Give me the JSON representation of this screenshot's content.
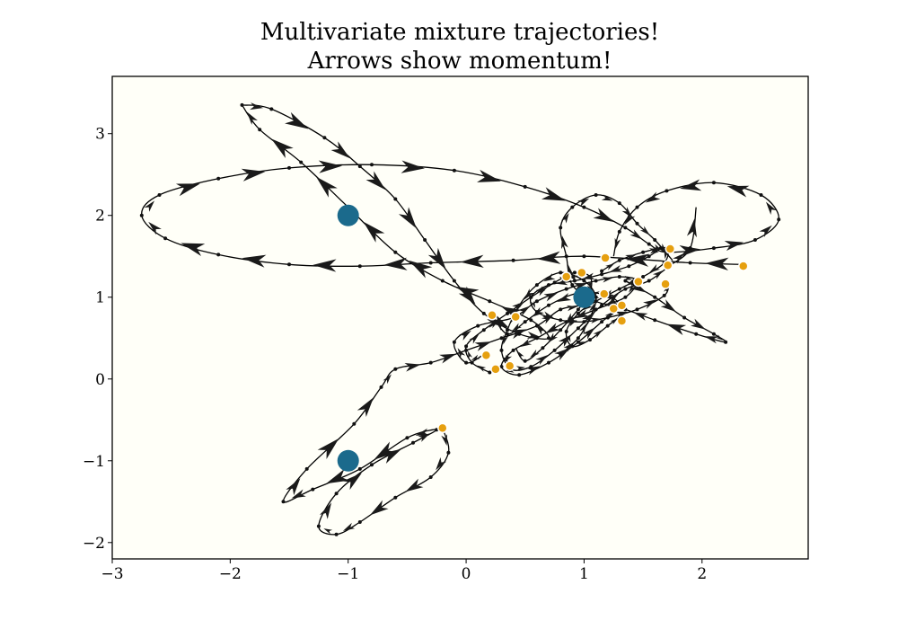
{
  "chart_data": {
    "type": "line",
    "title": [
      "Multivariate mixture trajectories!",
      "Arrows show momentum!"
    ],
    "xlabel": "",
    "ylabel": "",
    "xlim": [
      -3.0,
      2.9
    ],
    "ylim": [
      -2.2,
      3.7
    ],
    "xticks": [
      {
        "value": -3,
        "label": "−3"
      },
      {
        "value": -2,
        "label": "−2"
      },
      {
        "value": -1,
        "label": "−1"
      },
      {
        "value": 0,
        "label": "0"
      },
      {
        "value": 1,
        "label": "1"
      },
      {
        "value": 2,
        "label": "2"
      }
    ],
    "yticks": [
      {
        "value": -2,
        "label": "−2"
      },
      {
        "value": -1,
        "label": "−1"
      },
      {
        "value": 0,
        "label": "0"
      },
      {
        "value": 1,
        "label": "1"
      },
      {
        "value": 2,
        "label": "2"
      },
      {
        "value": 3,
        "label": "3"
      }
    ],
    "grid": false,
    "legend": "none",
    "colors": {
      "background": "#fffff8",
      "line": "#000000",
      "arrow": "#1a1a1a",
      "center": "#1b6a8c",
      "endpoint": "#e6a00f"
    },
    "mixture_centers": [
      {
        "x": -1.0,
        "y": 2.0
      },
      {
        "x": 1.0,
        "y": 1.0
      },
      {
        "x": -1.0,
        "y": -1.0
      }
    ],
    "trajectories": [
      {
        "points": [
          [
            -0.2,
            -0.6
          ],
          [
            -0.15,
            -0.9
          ],
          [
            -0.3,
            -1.2
          ],
          [
            -0.6,
            -1.45
          ],
          [
            -0.9,
            -1.75
          ],
          [
            -1.1,
            -1.9
          ],
          [
            -1.25,
            -1.8
          ],
          [
            -1.1,
            -1.4
          ],
          [
            -0.8,
            -1.05
          ],
          [
            -0.45,
            -0.78
          ],
          [
            -0.25,
            -0.62
          ],
          [
            -0.5,
            -0.72
          ],
          [
            -0.9,
            -1.1
          ],
          [
            -1.3,
            -1.35
          ],
          [
            -1.55,
            -1.5
          ],
          [
            -1.35,
            -1.1
          ],
          [
            -0.95,
            -0.55
          ],
          [
            -0.72,
            -0.1
          ],
          [
            -0.6,
            0.12
          ],
          [
            -0.3,
            0.2
          ],
          [
            0.0,
            0.35
          ],
          [
            0.3,
            0.5
          ],
          [
            0.6,
            0.65
          ],
          [
            0.8,
            0.85
          ],
          [
            1.0,
            0.9
          ]
        ],
        "arrows_every": 1
      },
      {
        "points": [
          [
            -1.9,
            3.35
          ],
          [
            -1.65,
            3.3
          ],
          [
            -1.2,
            2.95
          ],
          [
            -0.9,
            2.6
          ],
          [
            -0.6,
            2.2
          ],
          [
            -0.35,
            1.7
          ],
          [
            -0.1,
            1.2
          ],
          [
            0.15,
            0.8
          ],
          [
            0.45,
            0.55
          ],
          [
            0.7,
            0.5
          ],
          [
            0.55,
            0.72
          ],
          [
            0.2,
            0.95
          ],
          [
            -0.2,
            1.2
          ],
          [
            -0.6,
            1.55
          ],
          [
            -1.0,
            2.1
          ],
          [
            -1.4,
            2.65
          ],
          [
            -1.75,
            3.05
          ],
          [
            -1.9,
            3.35
          ]
        ],
        "arrows_every": 1
      },
      {
        "points": [
          [
            2.35,
            1.4
          ],
          [
            1.9,
            1.42
          ],
          [
            1.0,
            1.5
          ],
          [
            0.4,
            1.45
          ],
          [
            -0.3,
            1.42
          ],
          [
            -0.9,
            1.38
          ],
          [
            -1.5,
            1.4
          ],
          [
            -2.1,
            1.52
          ],
          [
            -2.55,
            1.72
          ],
          [
            -2.75,
            2.0
          ],
          [
            -2.6,
            2.25
          ],
          [
            -2.1,
            2.45
          ],
          [
            -1.5,
            2.58
          ],
          [
            -0.8,
            2.62
          ],
          [
            -0.1,
            2.55
          ],
          [
            0.5,
            2.35
          ],
          [
            1.0,
            2.1
          ],
          [
            1.35,
            1.85
          ],
          [
            1.55,
            1.65
          ],
          [
            1.7,
            1.55
          ],
          [
            2.1,
            1.6
          ],
          [
            2.45,
            1.7
          ],
          [
            2.65,
            1.95
          ],
          [
            2.5,
            2.25
          ],
          [
            2.1,
            2.4
          ],
          [
            1.7,
            2.3
          ],
          [
            1.45,
            2.1
          ],
          [
            1.3,
            1.8
          ],
          [
            1.25,
            1.5
          ]
        ],
        "arrows_every": 1
      },
      {
        "points": [
          [
            1.35,
            1.2
          ],
          [
            1.6,
            1.0
          ],
          [
            1.85,
            0.75
          ],
          [
            2.1,
            0.55
          ],
          [
            2.2,
            0.45
          ],
          [
            1.95,
            0.55
          ],
          [
            1.6,
            0.72
          ],
          [
            1.35,
            0.85
          ],
          [
            1.1,
            0.95
          ],
          [
            0.9,
            1.15
          ],
          [
            0.85,
            1.5
          ],
          [
            0.8,
            1.85
          ],
          [
            0.9,
            2.1
          ],
          [
            1.1,
            2.25
          ],
          [
            1.3,
            2.15
          ],
          [
            1.45,
            1.9
          ],
          [
            1.6,
            1.7
          ],
          [
            1.75,
            1.45
          ]
        ],
        "arrows_every": 1
      },
      {
        "points": [
          [
            0.15,
            0.3
          ],
          [
            0.0,
            0.2
          ],
          [
            -0.1,
            0.45
          ],
          [
            0.1,
            0.65
          ],
          [
            0.4,
            0.75
          ],
          [
            0.6,
            0.95
          ],
          [
            0.85,
            1.1
          ],
          [
            1.1,
            1.2
          ],
          [
            1.3,
            1.25
          ],
          [
            1.45,
            1.2
          ],
          [
            1.35,
            1.0
          ],
          [
            1.1,
            0.85
          ],
          [
            0.85,
            0.7
          ],
          [
            0.6,
            0.5
          ],
          [
            0.4,
            0.35
          ],
          [
            0.3,
            0.15
          ],
          [
            0.45,
            0.05
          ],
          [
            0.7,
            0.2
          ],
          [
            0.95,
            0.45
          ],
          [
            1.15,
            0.7
          ],
          [
            1.3,
            0.88
          ],
          [
            1.2,
            1.02
          ],
          [
            0.95,
            1.05
          ],
          [
            0.7,
            0.9
          ],
          [
            0.5,
            0.7
          ],
          [
            0.35,
            0.55
          ],
          [
            0.22,
            0.78
          ]
        ],
        "arrows_every": 1
      },
      {
        "points": [
          [
            0.8,
            0.3
          ],
          [
            0.95,
            0.5
          ],
          [
            1.05,
            0.75
          ],
          [
            1.1,
            1.0
          ],
          [
            1.0,
            1.2
          ],
          [
            0.8,
            1.3
          ],
          [
            0.6,
            1.15
          ],
          [
            0.45,
            0.9
          ],
          [
            0.35,
            0.6
          ],
          [
            0.3,
            0.35
          ],
          [
            0.38,
            0.12
          ],
          [
            0.55,
            0.15
          ],
          [
            0.75,
            0.35
          ],
          [
            0.95,
            0.62
          ],
          [
            1.15,
            0.9
          ],
          [
            1.35,
            1.1
          ],
          [
            1.55,
            1.2
          ],
          [
            1.72,
            1.38
          ],
          [
            1.9,
            1.6
          ],
          [
            1.95,
            2.1
          ]
        ],
        "arrows_every": 1
      },
      {
        "points": [
          [
            0.2,
            0.08
          ],
          [
            0.05,
            0.2
          ],
          [
            0.0,
            0.4
          ],
          [
            0.15,
            0.6
          ],
          [
            0.35,
            0.8
          ],
          [
            0.55,
            1.0
          ],
          [
            0.75,
            1.18
          ],
          [
            0.92,
            1.3
          ],
          [
            1.05,
            1.25
          ],
          [
            1.05,
            1.05
          ],
          [
            0.95,
            0.85
          ],
          [
            0.8,
            0.6
          ],
          [
            0.65,
            0.38
          ],
          [
            0.5,
            0.22
          ],
          [
            0.42,
            0.38
          ]
        ],
        "arrows_every": 1
      },
      {
        "points": [
          [
            1.15,
            1.32
          ],
          [
            1.3,
            1.45
          ],
          [
            1.5,
            1.55
          ],
          [
            1.7,
            1.6
          ],
          [
            1.68,
            1.42
          ],
          [
            1.5,
            1.25
          ],
          [
            1.3,
            1.1
          ],
          [
            1.1,
            0.95
          ],
          [
            0.95,
            0.8
          ],
          [
            0.85,
            0.58
          ],
          [
            0.9,
            0.4
          ],
          [
            1.05,
            0.48
          ],
          [
            1.2,
            0.65
          ],
          [
            1.32,
            0.78
          ]
        ],
        "arrows_every": 1
      },
      {
        "points": [
          [
            1.65,
            1.6
          ],
          [
            1.55,
            1.5
          ],
          [
            1.38,
            1.38
          ],
          [
            1.15,
            1.28
          ],
          [
            0.92,
            1.2
          ],
          [
            0.7,
            1.15
          ],
          [
            0.55,
            1.0
          ],
          [
            0.6,
            0.82
          ],
          [
            0.8,
            0.72
          ],
          [
            1.0,
            0.7
          ],
          [
            1.2,
            0.75
          ],
          [
            1.45,
            0.85
          ],
          [
            1.68,
            1.02
          ],
          [
            1.72,
            1.18
          ]
        ],
        "arrows_every": 1
      }
    ],
    "endpoints": [
      {
        "x": -0.2,
        "y": -0.6
      },
      {
        "x": 0.17,
        "y": 0.29
      },
      {
        "x": 0.25,
        "y": 0.12
      },
      {
        "x": 0.37,
        "y": 0.16
      },
      {
        "x": 0.22,
        "y": 0.78
      },
      {
        "x": 0.42,
        "y": 0.76
      },
      {
        "x": 0.85,
        "y": 1.25
      },
      {
        "x": 0.98,
        "y": 1.3
      },
      {
        "x": 1.18,
        "y": 1.48
      },
      {
        "x": 1.17,
        "y": 1.04
      },
      {
        "x": 1.25,
        "y": 0.86
      },
      {
        "x": 1.32,
        "y": 0.9
      },
      {
        "x": 1.32,
        "y": 0.71
      },
      {
        "x": 1.46,
        "y": 1.19
      },
      {
        "x": 1.69,
        "y": 1.16
      },
      {
        "x": 1.71,
        "y": 1.39
      },
      {
        "x": 1.73,
        "y": 1.59
      },
      {
        "x": 2.35,
        "y": 1.38
      }
    ]
  }
}
